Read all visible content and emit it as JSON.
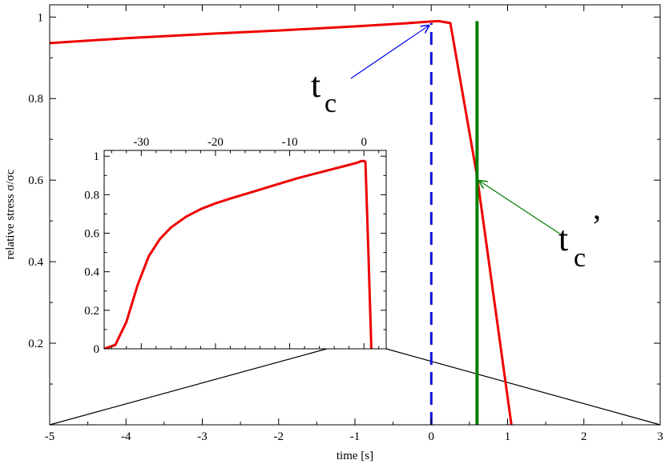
{
  "chart_data": [
    {
      "type": "line",
      "xlabel": "time [s]",
      "ylabel": "relative stress σ/σc",
      "xlim": [
        -5,
        3
      ],
      "ylim": [
        0,
        1.03
      ],
      "x_ticks": [
        -5,
        -4,
        -3,
        -2,
        -1,
        0,
        1,
        2,
        3
      ],
      "y_ticks": [
        0.2,
        0.4,
        0.6,
        0.8,
        1
      ],
      "x_tick_labels": [
        "-5",
        "-4",
        "-3",
        "-2",
        "-1",
        "0",
        "1",
        "2",
        "3"
      ],
      "y_tick_labels": [
        "0.2",
        "0.4",
        "0.6",
        "0.8",
        "1"
      ],
      "grid": false,
      "series": [
        {
          "color": "#ee0000",
          "style": "solid",
          "x": [
            -5,
            -4,
            -3,
            -2,
            -1,
            -0.3,
            0,
            0.1,
            0.25,
            0.6,
            1.05
          ],
          "y": [
            0.936,
            0.948,
            0.958,
            0.967,
            0.977,
            0.985,
            0.989,
            0.99,
            0.985,
            0.61,
            0.0
          ]
        },
        {
          "color": "#1010e0",
          "style": "dashed",
          "x": [
            0,
            0
          ],
          "y": [
            0,
            0.985
          ]
        },
        {
          "color": "#008000",
          "style": "solid",
          "x": [
            0.6,
            0.6
          ],
          "y": [
            0,
            0.99
          ]
        }
      ],
      "annotations": [
        {
          "text": "t",
          "sub": "c",
          "color": "#0000ee",
          "arrow_to": [
            0,
            0.985
          ]
        },
        {
          "text": "t",
          "sub": "c",
          "suffix": "’",
          "color": "#008000",
          "arrow_to": [
            0.6,
            0.6
          ]
        }
      ]
    },
    {
      "type": "line",
      "inset": true,
      "xlim": [
        -35,
        3
      ],
      "ylim": [
        0,
        1.03
      ],
      "x_ticks": [
        -30,
        -20,
        -10,
        0
      ],
      "y_ticks": [
        0,
        0.2,
        0.4,
        0.6,
        0.8,
        1
      ],
      "x_tick_labels": [
        "-30",
        "-20",
        "-10",
        "0"
      ],
      "y_tick_labels": [
        "0",
        "0.2",
        "0.4",
        "0.6",
        "0.8",
        "1"
      ],
      "x_axis_position": "top",
      "zoom_range_main_x": [
        -5,
        3
      ],
      "series": [
        {
          "color": "#ee0000",
          "style": "solid",
          "x": [
            -35,
            -33.5,
            -32,
            -30.5,
            -29,
            -27.5,
            -26,
            -24,
            -22,
            -20,
            -18,
            -15,
            -12,
            -9,
            -6,
            -3,
            -1,
            -0.3,
            0,
            0.2,
            0.6,
            1
          ],
          "y": [
            0,
            0.02,
            0.14,
            0.33,
            0.48,
            0.57,
            0.63,
            0.685,
            0.725,
            0.755,
            0.78,
            0.815,
            0.85,
            0.885,
            0.915,
            0.945,
            0.965,
            0.975,
            0.975,
            0.97,
            0.5,
            0.0
          ]
        }
      ]
    }
  ]
}
